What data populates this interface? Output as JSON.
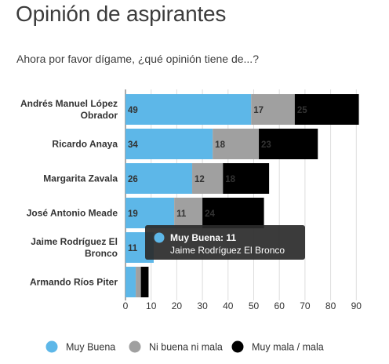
{
  "title": "Opinión de aspirantes",
  "subtitle": "Ahora por favor dígame, ¿qué opinión tiene de...?",
  "chart_data": {
    "type": "bar",
    "orientation": "horizontal",
    "stacked": true,
    "categories": [
      [
        "Andrés Manuel López",
        "Obrador"
      ],
      [
        "Ricardo Anaya"
      ],
      [
        "Margarita Zavala"
      ],
      [
        "José Antonio Meade"
      ],
      [
        "Jaime Rodríguez El",
        "Bronco"
      ],
      [
        "Armando Ríos Piter"
      ]
    ],
    "series": [
      {
        "name": "Muy Buena",
        "color": "#5db7e8",
        "values": [
          49,
          34,
          26,
          19,
          11,
          4
        ]
      },
      {
        "name": "Ni buena ni mala",
        "color": "#a0a0a0",
        "values": [
          17,
          18,
          12,
          11,
          0,
          2
        ]
      },
      {
        "name": "Muy mala / mala",
        "color": "#000000",
        "values": [
          25,
          23,
          18,
          24,
          0,
          3
        ]
      }
    ],
    "value_labels_shown": [
      [
        true,
        true,
        true,
        true,
        true,
        false
      ],
      [
        true,
        true,
        true,
        true,
        false,
        false
      ],
      [
        true,
        true,
        true,
        true,
        false,
        false
      ]
    ],
    "xlim": [
      0,
      95
    ],
    "xticks": [
      0,
      10,
      20,
      30,
      40,
      50,
      60,
      70,
      80,
      90
    ],
    "grid": true,
    "legend_position": "bottom",
    "tooltip": {
      "category_index": 4,
      "series_name": "Muy Buena",
      "value": 11,
      "heading": "Muy Buena: 11",
      "detail": "Jaime Rodríguez El Bronco"
    }
  }
}
